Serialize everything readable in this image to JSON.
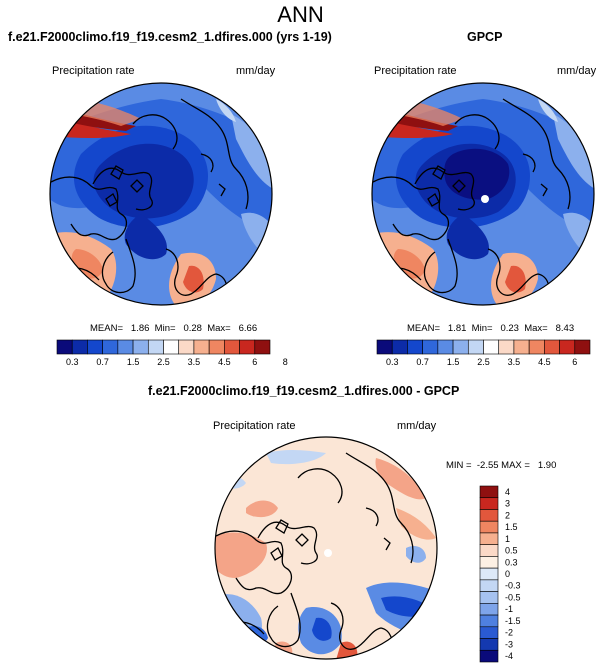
{
  "title": "ANN",
  "panels": {
    "left": {
      "title": "f.e21.F2000climo.f19_f19.cesm2_1.dfires.000 (yrs 1-19)",
      "variable": "Precipitation rate",
      "units": "mm/day",
      "stats": "MEAN=   1.86  Min=   0.28  Max=   6.66"
    },
    "right": {
      "title": "GPCP",
      "variable": "Precipitation rate",
      "units": "mm/day",
      "stats": "MEAN=   1.81  Min=   0.23  Max=   8.43"
    },
    "diff": {
      "title": "f.e21.F2000climo.f19_f19.cesm2_1.dfires.000 - GPCP",
      "variable": "Precipitation rate",
      "units": "mm/day",
      "stats": "MIN =  -2.55 MAX =   1.90"
    }
  },
  "colorbar_abs": {
    "labels": [
      "0.3",
      "0.7",
      "1.5",
      "2.5",
      "3.5",
      "4.5",
      "6",
      "8"
    ],
    "colors": [
      "#0a0a7a",
      "#0c2ba8",
      "#1447cc",
      "#2f67db",
      "#5a8be4",
      "#8cb0ed",
      "#c3d7f4",
      "#ffffff",
      "#fbd9c7",
      "#f6b08f",
      "#ef8661",
      "#e2573c",
      "#c9271f",
      "#8f1010"
    ]
  },
  "colorbar_diff": {
    "labels": [
      "4",
      "3",
      "2",
      "1.5",
      "1",
      "0.5",
      "0.3",
      "0",
      "-0.3",
      "-0.5",
      "-1",
      "-1.5",
      "-2",
      "-3",
      "-4"
    ],
    "colors": [
      "#8f1010",
      "#c9271f",
      "#e2573c",
      "#ef8661",
      "#f6b08f",
      "#fbd9c7",
      "#fdf0e4",
      "#dde9f8",
      "#c3d7f4",
      "#a6c2f0",
      "#7ea4ea",
      "#4f80e0",
      "#2a5ad2",
      "#1439b0",
      "#0a0a7a"
    ]
  },
  "colors": {
    "ocean_blue": "#2a5fd8",
    "deep_blue": "#0f2fb5",
    "light_blue": "#9ec0f0",
    "red": "#d8452c",
    "salmon": "#f4a488",
    "cream": "#fbe6d6"
  }
}
